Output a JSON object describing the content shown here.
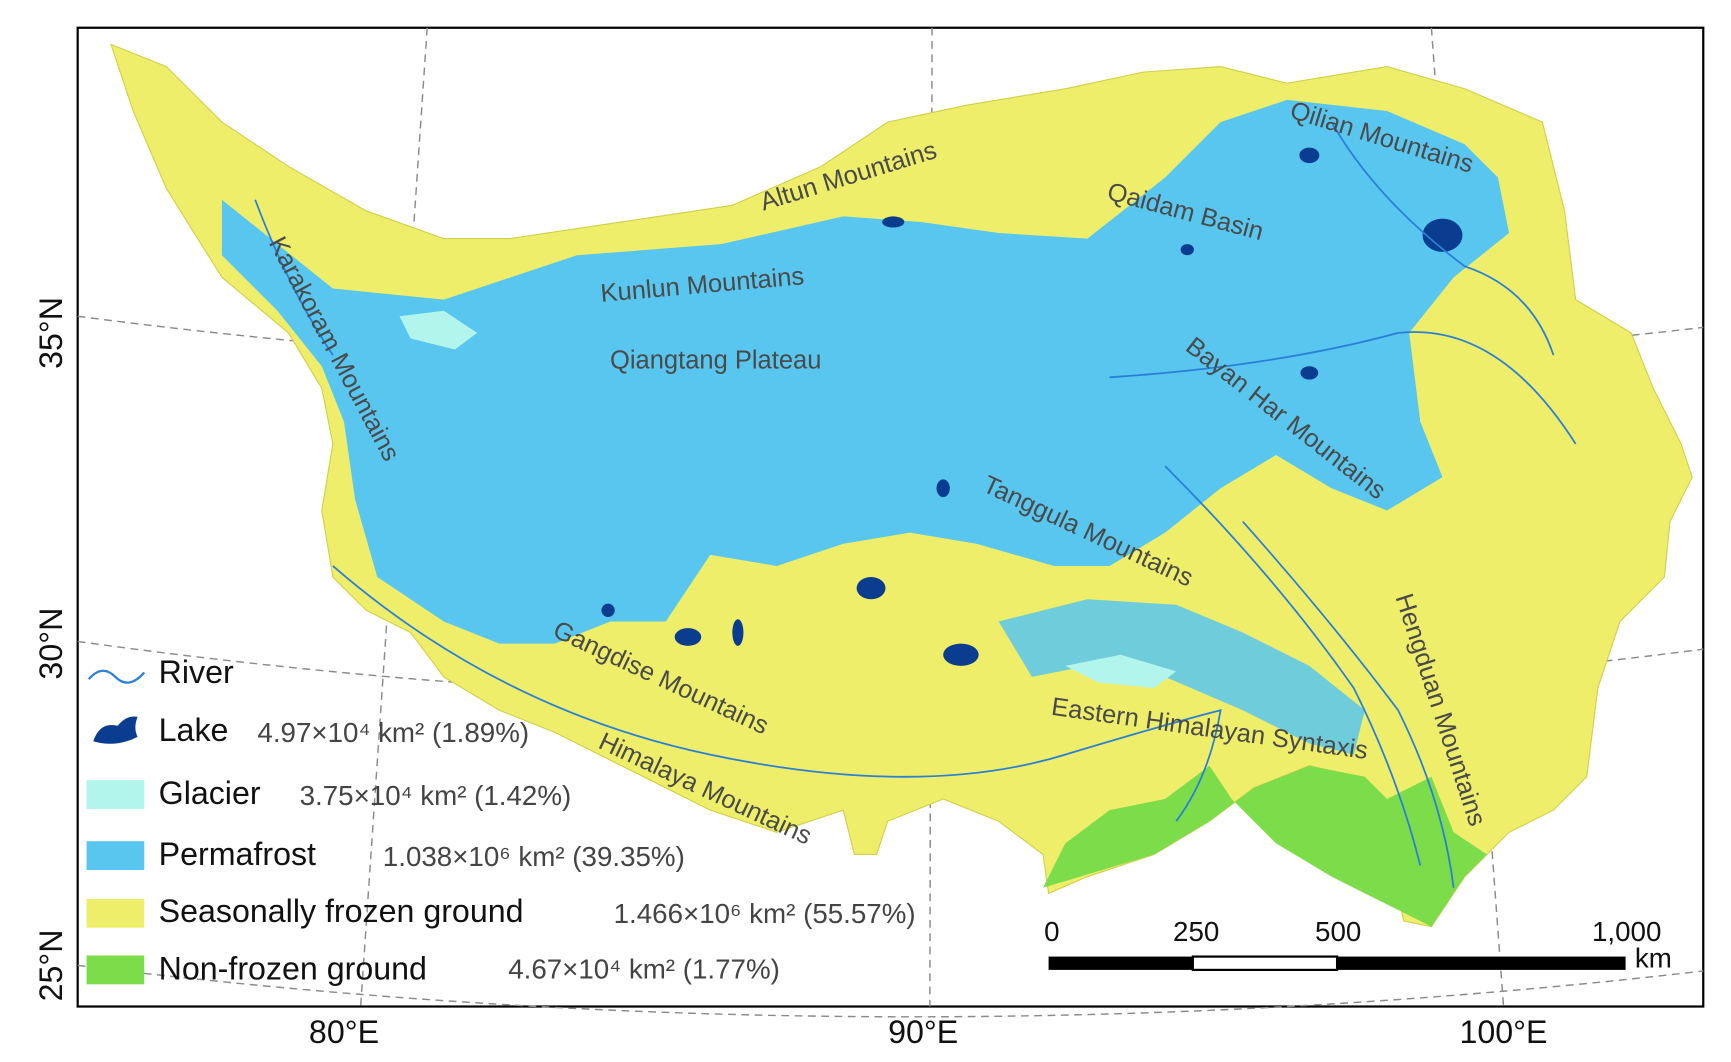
{
  "axes": {
    "latitude_labels": [
      "35°N",
      "30°N",
      "25°N"
    ],
    "longitude_labels": [
      "80°E",
      "90°E",
      "100°E"
    ]
  },
  "regions": [
    {
      "label": "Altun Mountains"
    },
    {
      "label": "Qilian Mountains"
    },
    {
      "label": "Qaidam Basin"
    },
    {
      "label": "Kunlun Mountains"
    },
    {
      "label": "Karakoram Mountains"
    },
    {
      "label": "Qiangtang Plateau"
    },
    {
      "label": "Bayan Har Mountains"
    },
    {
      "label": "Tanggula Mountains"
    },
    {
      "label": "Hengduan Mountains"
    },
    {
      "label": "Gangdise Mountains"
    },
    {
      "label": "Himalaya Mountains"
    },
    {
      "label": "Eastern Himalayan Syntaxis"
    }
  ],
  "legend": [
    {
      "label": "River"
    },
    {
      "label": "Lake",
      "area": "4.97×10⁴ km² (1.89%)"
    },
    {
      "label": "Glacier",
      "area": "3.75×10⁴ km² (1.42%)"
    },
    {
      "label": "Permafrost",
      "area": "1.038×10⁶ km² (39.35%)"
    },
    {
      "label": "Seasonally frozen ground",
      "area": "1.466×10⁶ km² (55.57%)"
    },
    {
      "label": "Non-frozen ground",
      "area": "4.67×10⁴ km² (1.77%)"
    }
  ],
  "scale_bar": {
    "labels": [
      "0",
      "250",
      "500",
      "1,000"
    ],
    "unit": "km"
  }
}
